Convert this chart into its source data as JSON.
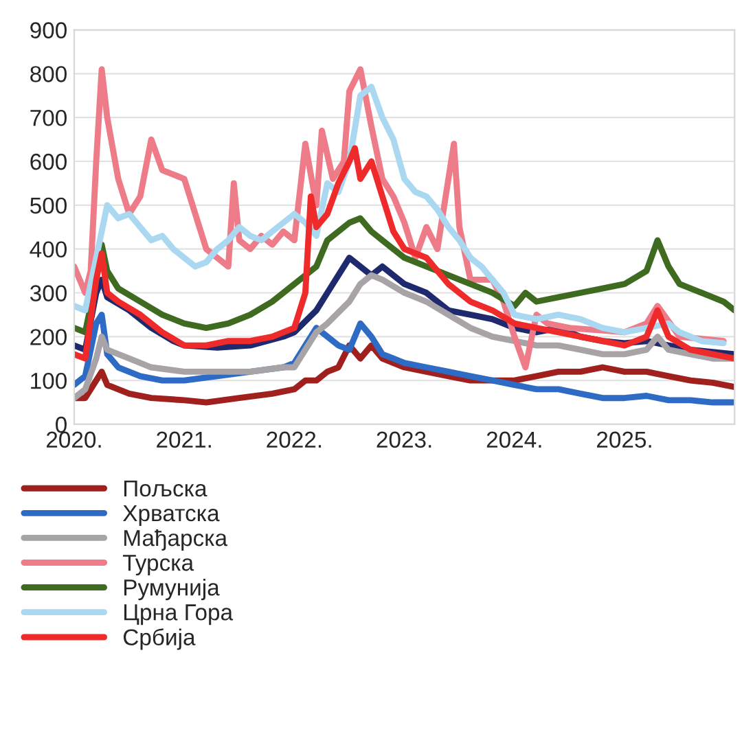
{
  "chart_data": {
    "type": "line",
    "xlim": [
      2020,
      2026
    ],
    "ylim": [
      0,
      900
    ],
    "xticks": [
      {
        "value": 2020,
        "label": "2020."
      },
      {
        "value": 2021,
        "label": "2021."
      },
      {
        "value": 2022,
        "label": "2022."
      },
      {
        "value": 2023,
        "label": "2023."
      },
      {
        "value": 2024,
        "label": "2024."
      },
      {
        "value": 2025,
        "label": "2025."
      }
    ],
    "yticks": [
      0,
      100,
      200,
      300,
      400,
      500,
      600,
      700,
      800,
      900
    ],
    "grid": "y",
    "legend": "bottom",
    "marker": "none",
    "line_style": "solid",
    "series": [
      {
        "color": "#1f2a6e",
        "x": [
          2020,
          2020.1,
          2020.2,
          2020.25,
          2020.3,
          2020.5,
          2020.7,
          2020.9,
          2021.0,
          2021.3,
          2021.6,
          2021.9,
          2022.0,
          2022.2,
          2022.3,
          2022.5,
          2022.6,
          2022.7,
          2022.8,
          2023.0,
          2023.2,
          2023.4,
          2023.6,
          2023.8,
          2024.0,
          2024.2,
          2024.4,
          2024.6,
          2024.8,
          2025.0,
          2025.2,
          2025.4,
          2025.6,
          2025.8,
          2026
        ],
        "values": [
          180,
          170,
          300,
          330,
          290,
          260,
          220,
          190,
          180,
          175,
          180,
          200,
          210,
          260,
          300,
          380,
          360,
          340,
          360,
          320,
          300,
          260,
          250,
          240,
          220,
          210,
          220,
          200,
          190,
          185,
          190,
          180,
          170,
          165,
          160
        ]
      },
      {
        "name": "Пољска",
        "color": "#a0201e",
        "x": [
          2020,
          2020.1,
          2020.2,
          2020.25,
          2020.3,
          2020.5,
          2020.7,
          2021.0,
          2021.2,
          2021.5,
          2021.8,
          2022.0,
          2022.1,
          2022.2,
          2022.3,
          2022.4,
          2022.5,
          2022.6,
          2022.7,
          2022.8,
          2022.9,
          2023.0,
          2023.2,
          2023.4,
          2023.6,
          2023.8,
          2024.0,
          2024.2,
          2024.4,
          2024.6,
          2024.8,
          2025.0,
          2025.2,
          2025.4,
          2025.6,
          2025.8,
          2026
        ],
        "values": [
          60,
          60,
          100,
          120,
          90,
          70,
          60,
          55,
          50,
          60,
          70,
          80,
          100,
          100,
          120,
          130,
          180,
          150,
          180,
          150,
          140,
          130,
          120,
          110,
          100,
          100,
          100,
          110,
          120,
          120,
          130,
          120,
          120,
          110,
          100,
          95,
          85
        ]
      },
      {
        "name": "Хрватска",
        "color": "#2e6bc4",
        "x": [
          2020,
          2020.1,
          2020.2,
          2020.25,
          2020.3,
          2020.4,
          2020.6,
          2020.8,
          2021.0,
          2021.3,
          2021.6,
          2021.9,
          2022.0,
          2022.1,
          2022.2,
          2022.3,
          2022.4,
          2022.5,
          2022.6,
          2022.7,
          2022.8,
          2022.9,
          2023.0,
          2023.2,
          2023.4,
          2023.6,
          2023.8,
          2024.0,
          2024.2,
          2024.4,
          2024.6,
          2024.8,
          2025.0,
          2025.2,
          2025.4,
          2025.6,
          2025.8,
          2026
        ],
        "values": [
          90,
          110,
          230,
          250,
          160,
          130,
          110,
          100,
          100,
          110,
          120,
          130,
          140,
          180,
          220,
          200,
          180,
          170,
          230,
          200,
          160,
          150,
          140,
          130,
          120,
          110,
          100,
          90,
          80,
          80,
          70,
          60,
          60,
          65,
          55,
          55,
          50,
          50
        ]
      },
      {
        "name": "Мађарска",
        "color": "#a7a3a6",
        "x": [
          2020,
          2020.1,
          2020.2,
          2020.25,
          2020.3,
          2020.5,
          2020.7,
          2021.0,
          2021.3,
          2021.6,
          2021.9,
          2022.0,
          2022.1,
          2022.2,
          2022.3,
          2022.5,
          2022.6,
          2022.7,
          2022.8,
          2023.0,
          2023.2,
          2023.4,
          2023.6,
          2023.8,
          2024.0,
          2024.2,
          2024.4,
          2024.6,
          2024.8,
          2025.0,
          2025.2,
          2025.3,
          2025.4,
          2025.6,
          2025.8,
          2026
        ],
        "values": [
          60,
          80,
          150,
          200,
          170,
          150,
          130,
          120,
          120,
          120,
          130,
          130,
          170,
          210,
          230,
          280,
          320,
          340,
          330,
          300,
          280,
          250,
          220,
          200,
          190,
          180,
          180,
          170,
          160,
          160,
          170,
          200,
          170,
          160,
          150,
          150
        ]
      },
      {
        "name": "Турска",
        "color": "#ee7b88",
        "x": [
          2020,
          2020.05,
          2020.1,
          2020.15,
          2020.2,
          2020.25,
          2020.3,
          2020.4,
          2020.5,
          2020.6,
          2020.7,
          2020.8,
          2020.9,
          2021.0,
          2021.1,
          2021.2,
          2021.3,
          2021.4,
          2021.45,
          2021.5,
          2021.6,
          2021.7,
          2021.8,
          2021.9,
          2022.0,
          2022.1,
          2022.2,
          2022.25,
          2022.35,
          2022.45,
          2022.5,
          2022.6,
          2022.7,
          2022.8,
          2022.9,
          2023.0,
          2023.1,
          2023.2,
          2023.3,
          2023.45,
          2023.5,
          2023.6,
          2023.8,
          2023.9,
          2024.0,
          2024.1,
          2024.2,
          2024.3,
          2024.5,
          2025.0,
          2025.2,
          2025.3,
          2025.5,
          2025.9
        ],
        "values": [
          360,
          330,
          300,
          350,
          600,
          810,
          700,
          560,
          480,
          520,
          650,
          580,
          570,
          560,
          480,
          400,
          380,
          360,
          550,
          420,
          400,
          430,
          410,
          440,
          420,
          640,
          500,
          670,
          560,
          600,
          760,
          810,
          680,
          560,
          520,
          460,
          380,
          450,
          400,
          640,
          450,
          330,
          330,
          280,
          200,
          130,
          250,
          230,
          220,
          210,
          230,
          270,
          200,
          190
        ]
      },
      {
        "name": "Румунија",
        "color": "#3f6b20",
        "x": [
          2020,
          2020.1,
          2020.2,
          2020.25,
          2020.3,
          2020.4,
          2020.6,
          2020.8,
          2021.0,
          2021.2,
          2021.4,
          2021.6,
          2021.8,
          2022.0,
          2022.2,
          2022.3,
          2022.5,
          2022.6,
          2022.7,
          2022.8,
          2023.0,
          2023.2,
          2023.4,
          2023.6,
          2023.8,
          2024.0,
          2024.1,
          2024.2,
          2024.4,
          2024.6,
          2024.8,
          2025.0,
          2025.2,
          2025.3,
          2025.4,
          2025.5,
          2025.7,
          2025.9,
          2026
        ],
        "values": [
          220,
          210,
          330,
          410,
          350,
          310,
          280,
          250,
          230,
          220,
          230,
          250,
          280,
          320,
          360,
          420,
          460,
          470,
          440,
          420,
          380,
          360,
          340,
          320,
          300,
          270,
          300,
          280,
          290,
          300,
          310,
          320,
          350,
          420,
          360,
          320,
          300,
          280,
          260
        ]
      },
      {
        "name": "Црна Гора",
        "color": "#a9d8f0",
        "x": [
          2020,
          2020.1,
          2020.2,
          2020.3,
          2020.4,
          2020.5,
          2020.6,
          2020.7,
          2020.8,
          2020.9,
          2021.0,
          2021.1,
          2021.2,
          2021.3,
          2021.4,
          2021.5,
          2021.6,
          2021.7,
          2021.8,
          2022.0,
          2022.1,
          2022.2,
          2022.3,
          2022.4,
          2022.5,
          2022.6,
          2022.7,
          2022.8,
          2022.9,
          2023.0,
          2023.1,
          2023.2,
          2023.3,
          2023.4,
          2023.5,
          2023.6,
          2023.7,
          2023.8,
          2023.9,
          2024.0,
          2024.2,
          2024.4,
          2024.6,
          2024.8,
          2025.0,
          2025.2,
          2025.4,
          2025.5,
          2025.7,
          2025.9
        ],
        "values": [
          270,
          260,
          380,
          500,
          470,
          480,
          450,
          420,
          430,
          400,
          380,
          360,
          370,
          400,
          420,
          450,
          430,
          420,
          440,
          480,
          460,
          430,
          550,
          530,
          600,
          750,
          770,
          700,
          650,
          560,
          530,
          520,
          490,
          450,
          420,
          380,
          360,
          330,
          300,
          250,
          240,
          250,
          240,
          220,
          210,
          220,
          230,
          210,
          190,
          185
        ]
      },
      {
        "name": "Србија",
        "color": "#ee2a2a",
        "x": [
          2020,
          2020.1,
          2020.2,
          2020.25,
          2020.3,
          2020.4,
          2020.6,
          2020.8,
          2021.0,
          2021.2,
          2021.4,
          2021.6,
          2021.8,
          2022.0,
          2022.1,
          2022.15,
          2022.2,
          2022.3,
          2022.4,
          2022.5,
          2022.55,
          2022.6,
          2022.7,
          2022.8,
          2022.9,
          2023.0,
          2023.2,
          2023.4,
          2023.6,
          2023.8,
          2024.0,
          2024.2,
          2024.4,
          2024.6,
          2024.8,
          2025.0,
          2025.2,
          2025.3,
          2025.4,
          2025.6,
          2025.8,
          2026
        ],
        "values": [
          160,
          150,
          330,
          390,
          300,
          280,
          250,
          210,
          180,
          180,
          190,
          190,
          200,
          220,
          300,
          520,
          450,
          480,
          550,
          600,
          630,
          560,
          600,
          520,
          440,
          400,
          380,
          320,
          280,
          260,
          230,
          220,
          210,
          200,
          190,
          180,
          200,
          260,
          200,
          170,
          160,
          150
        ]
      }
    ]
  }
}
